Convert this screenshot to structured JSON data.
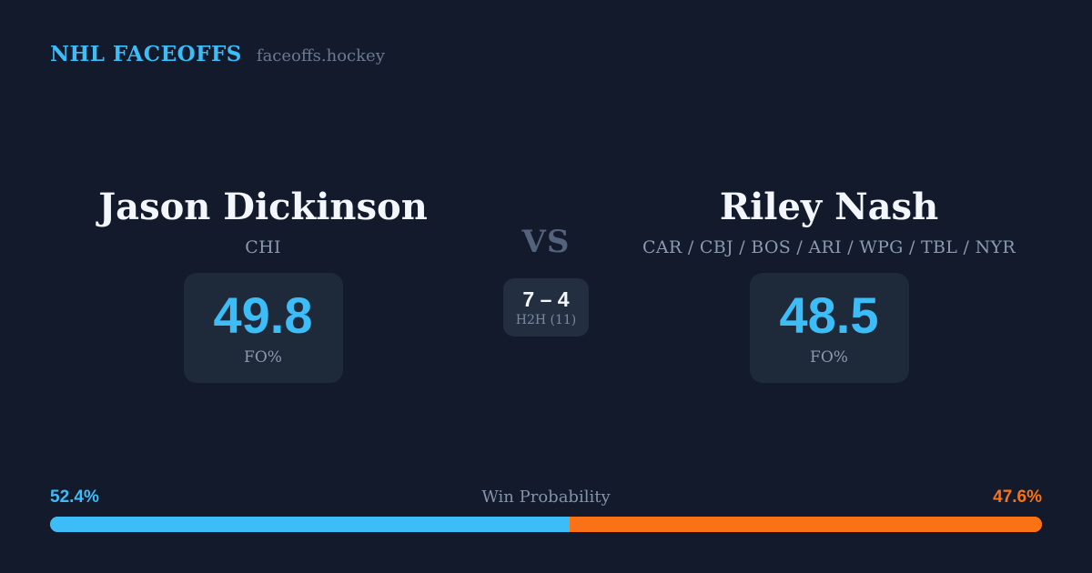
{
  "header": {
    "brand": "NHL FACEOFFS",
    "site": "faceoffs.hockey"
  },
  "matchup": {
    "vs_label": "VS",
    "left_player": {
      "name": "Jason Dickinson",
      "teams": "CHI",
      "fo_pct": "49.8",
      "fo_label": "FO%"
    },
    "right_player": {
      "name": "Riley Nash",
      "teams": "CAR / CBJ / BOS / ARI / WPG / TBL / NYR",
      "fo_pct": "48.5",
      "fo_label": "FO%"
    },
    "h2h": {
      "score": "7 – 4",
      "label": "H2H (11)"
    }
  },
  "win_probability": {
    "label": "Win Probability",
    "left_pct": "52.4%",
    "right_pct": "47.6%",
    "left_value": 52.4,
    "right_value": 47.6
  },
  "colors": {
    "background": "#121a2c",
    "panel": "#1e2939",
    "accent_blue": "#3cbdf8",
    "accent_orange": "#f97316",
    "text_primary": "#f3f6fb",
    "text_muted": "#8b9ab0"
  },
  "chart_data": {
    "type": "bar",
    "title": "Win Probability",
    "categories": [
      "Jason Dickinson",
      "Riley Nash"
    ],
    "values": [
      52.4,
      47.6
    ],
    "series": [
      {
        "name": "Jason Dickinson (CHI)",
        "win_probability_pct": 52.4,
        "faceoff_pct": 49.8,
        "h2h_wins": 7,
        "color": "#3cbdf8"
      },
      {
        "name": "Riley Nash (CAR/CBJ/BOS/ARI/WPG/TBL/NYR)",
        "win_probability_pct": 47.6,
        "faceoff_pct": 48.5,
        "h2h_wins": 4,
        "color": "#f97316"
      }
    ],
    "h2h_total_faceoffs": 11,
    "xlabel": "",
    "ylabel": "Win Probability (%)",
    "ylim": [
      0,
      100
    ],
    "legend_position": "none",
    "grid": false
  }
}
